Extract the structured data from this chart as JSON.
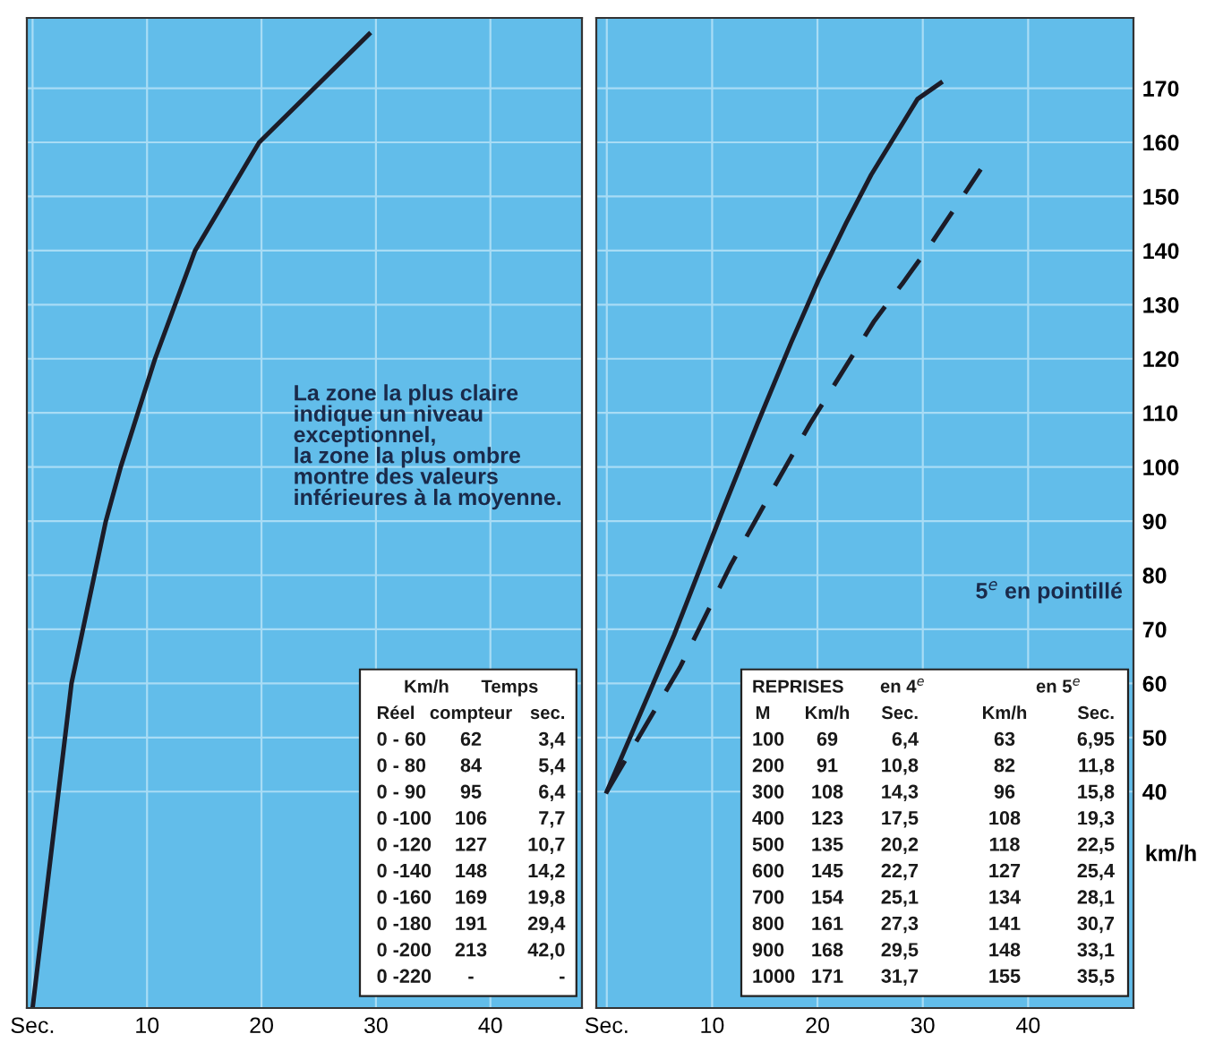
{
  "chart_data": [
    {
      "type": "line",
      "series": [
        {
          "color": "#1c1c28",
          "line_style": "solid",
          "x": [
            0,
            3.4,
            5.4,
            6.4,
            7.7,
            10.7,
            14.2,
            19.8,
            29.4
          ],
          "values": [
            0,
            60,
            80,
            90,
            100,
            120,
            140,
            160,
            180
          ]
        }
      ],
      "xlim": [
        -0.5,
        48
      ],
      "xticks": [
        {
          "value": 0,
          "label": "Sec."
        },
        10,
        20,
        30,
        40
      ],
      "ylim": [
        0,
        183
      ],
      "yticks": [
        40,
        50,
        60,
        70,
        80,
        90,
        100,
        110,
        120,
        130,
        140,
        150,
        160,
        170
      ],
      "tick_labels": "x",
      "grid": true,
      "annotations": [
        "La zone la plus claire\nindique un niveau\nexceptionnel,\nla zone la plus ombre\nmontre des valeurs\ninférieures à la moyenne.",
        "Km/h",
        "Temps",
        "Réel",
        "compteur",
        "sec.",
        "0 - 60",
        "62",
        "3,4",
        "0 - 80",
        "84",
        "5,4",
        "0 - 90",
        "95",
        "6,4",
        "0 -100",
        "106",
        "7,7",
        "0 -120",
        "127",
        "10,7",
        "0 -140",
        "148",
        "14,2",
        "0 -160",
        "169",
        "19,8",
        "0 -180",
        "191",
        "29,4",
        "0 -200",
        "213",
        "42,0",
        "0 -220",
        "-",
        "-"
      ]
    },
    {
      "type": "line",
      "series": [
        {
          "color": "#1c1c28",
          "line_style": "solid",
          "x": [
            0,
            6.4,
            10.8,
            14.3,
            17.5,
            20.2,
            22.7,
            25.1,
            27.3,
            29.5,
            31.7
          ],
          "values": [
            40,
            69,
            91,
            108,
            123,
            135,
            145,
            154,
            161,
            168,
            171
          ]
        },
        {
          "color": "#1c1c28",
          "line_style": "dashed",
          "x": [
            0,
            6.95,
            11.8,
            15.8,
            19.3,
            22.5,
            25.4,
            28.1,
            30.7,
            33.1,
            35.5
          ],
          "values": [
            40,
            63,
            82,
            96,
            108,
            118,
            127,
            134,
            141,
            148,
            155
          ]
        }
      ],
      "xlim": [
        -1,
        50
      ],
      "xticks": [
        {
          "value": 0,
          "label": "Sec."
        },
        10,
        20,
        30,
        40
      ],
      "ylim": [
        0,
        183
      ],
      "yticks": [
        40,
        50,
        60,
        70,
        80,
        90,
        100,
        110,
        120,
        130,
        140,
        150,
        160,
        170
      ],
      "ylabel": "km/h",
      "grid": true,
      "annotations": [
        "5$^{e}$ en pointillé",
        "REPRISES",
        "en 4$^{e}$",
        "en 5$^{e}$",
        "M",
        "Km/h",
        "Sec.",
        "Km/h",
        "Sec.",
        "100",
        "69",
        "6,4",
        "63",
        "6,95",
        "200",
        "91",
        "10,8",
        "82",
        "11,8",
        "300",
        "108",
        "14,3",
        "96",
        "15,8",
        "400",
        "123",
        "17,5",
        "108",
        "19,3",
        "500",
        "135",
        "20,2",
        "118",
        "22,5",
        "600",
        "145",
        "22,7",
        "127",
        "25,4",
        "700",
        "154",
        "25,1",
        "134",
        "28,1",
        "800",
        "161",
        "27,3",
        "141",
        "30,7",
        "900",
        "168",
        "29,5",
        "148",
        "33,1",
        "1000",
        "171",
        "31,7",
        "155",
        "35,5"
      ]
    }
  ]
}
